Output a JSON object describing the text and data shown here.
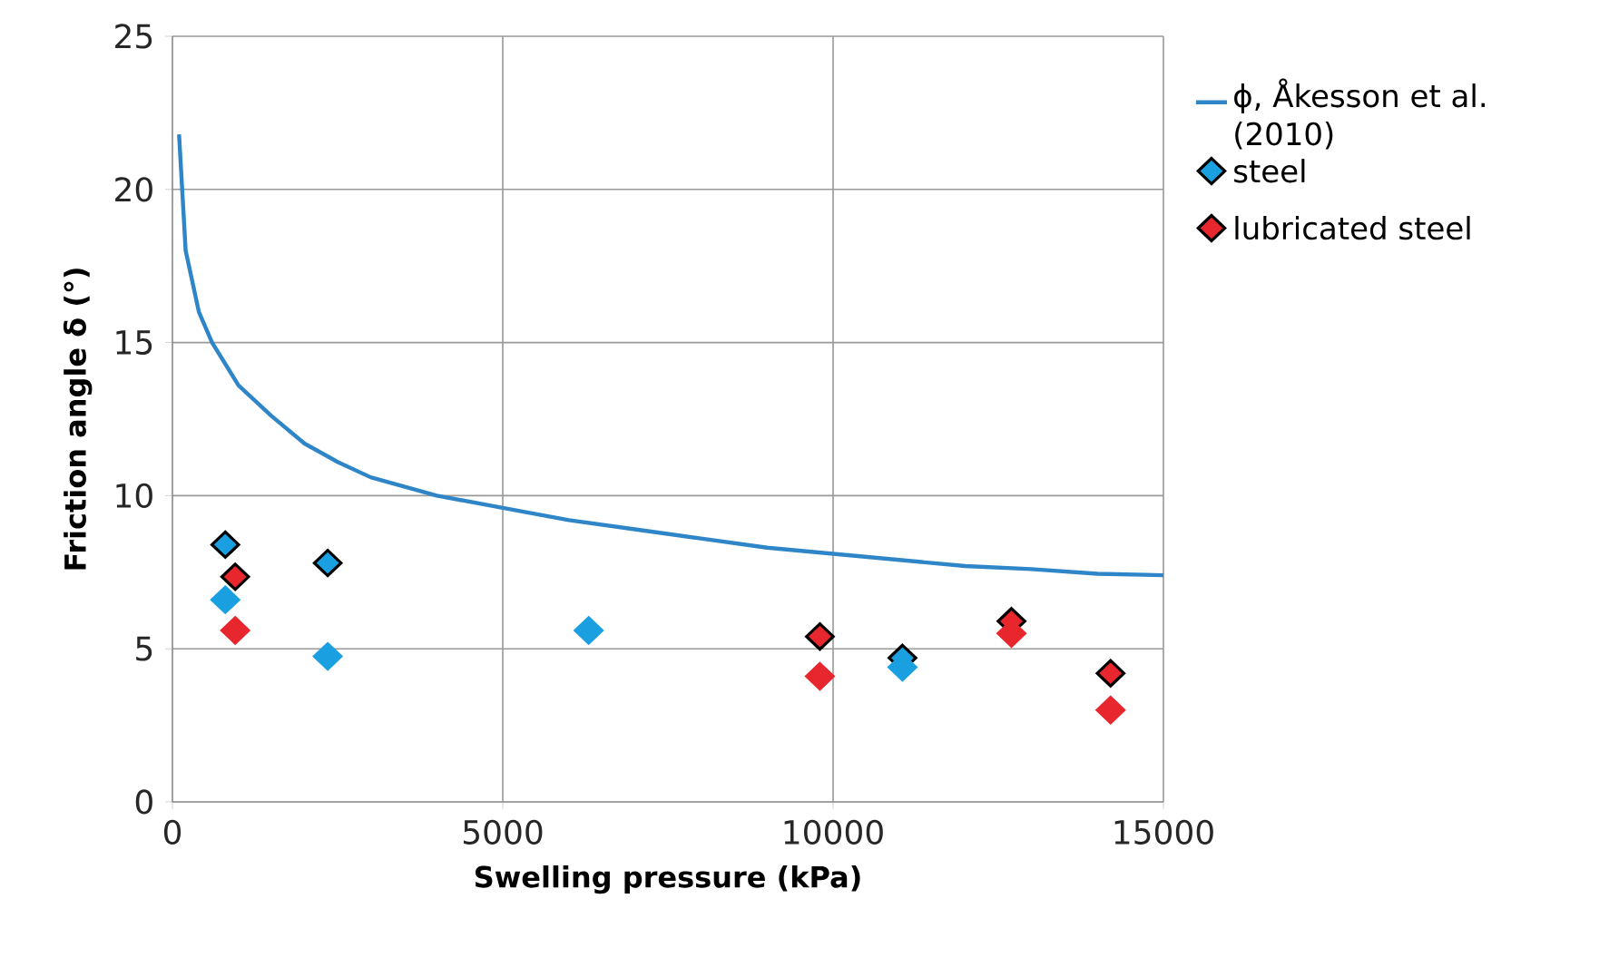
{
  "chart_data": {
    "type": "scatter",
    "xlabel": "Swelling pressure (kPa)",
    "ylabel": "Friction angle δ (°)",
    "xlim": [
      0,
      15000
    ],
    "ylim": [
      0,
      25
    ],
    "xticks": [
      0,
      5000,
      10000,
      15000
    ],
    "yticks": [
      0,
      5,
      10,
      15,
      20,
      25
    ],
    "grid": true,
    "legend": "right",
    "series": [
      {
        "name": "ϕ, Åkesson et al. (2010)",
        "type": "line",
        "marker": "none",
        "color": "#2e86c8",
        "x": [
          100,
          200,
          400,
          600,
          1000,
          1500,
          2000,
          2500,
          3000,
          4000,
          5000,
          6000,
          7000,
          8000,
          9000,
          10000,
          11000,
          12000,
          13000,
          14000,
          15000
        ],
        "values": [
          21.8,
          18,
          16,
          15,
          13.6,
          12.6,
          11.7,
          11.1,
          10.6,
          10,
          9.6,
          9.2,
          8.9,
          8.6,
          8.3,
          8.1,
          7.9,
          7.7,
          7.6,
          7.45,
          7.4
        ]
      },
      {
        "name": "steel",
        "marker": "diamond",
        "color": "#1aa0e0",
        "x": [
          800,
          2350,
          6300,
          11050
        ],
        "values": [
          8.4,
          7.8,
          null,
          4.7
        ]
      },
      {
        "name": "lubricated steel",
        "marker": "diamond",
        "color": "#e8262e",
        "x": [
          950,
          9800,
          12700,
          14200
        ],
        "values": [
          7.35,
          5.4,
          5.9,
          4.2
        ]
      },
      {
        "marker": "diamond",
        "color": "#1aa0e0",
        "x": [
          800,
          2350,
          6300,
          11050
        ],
        "values": [
          6.6,
          4.75,
          5.6,
          4.4
        ]
      },
      {
        "marker": "diamond",
        "color": "#e8262e",
        "x": [
          950,
          9800,
          12700,
          14200
        ],
        "values": [
          5.6,
          4.1,
          5.5,
          3.0
        ]
      }
    ]
  }
}
